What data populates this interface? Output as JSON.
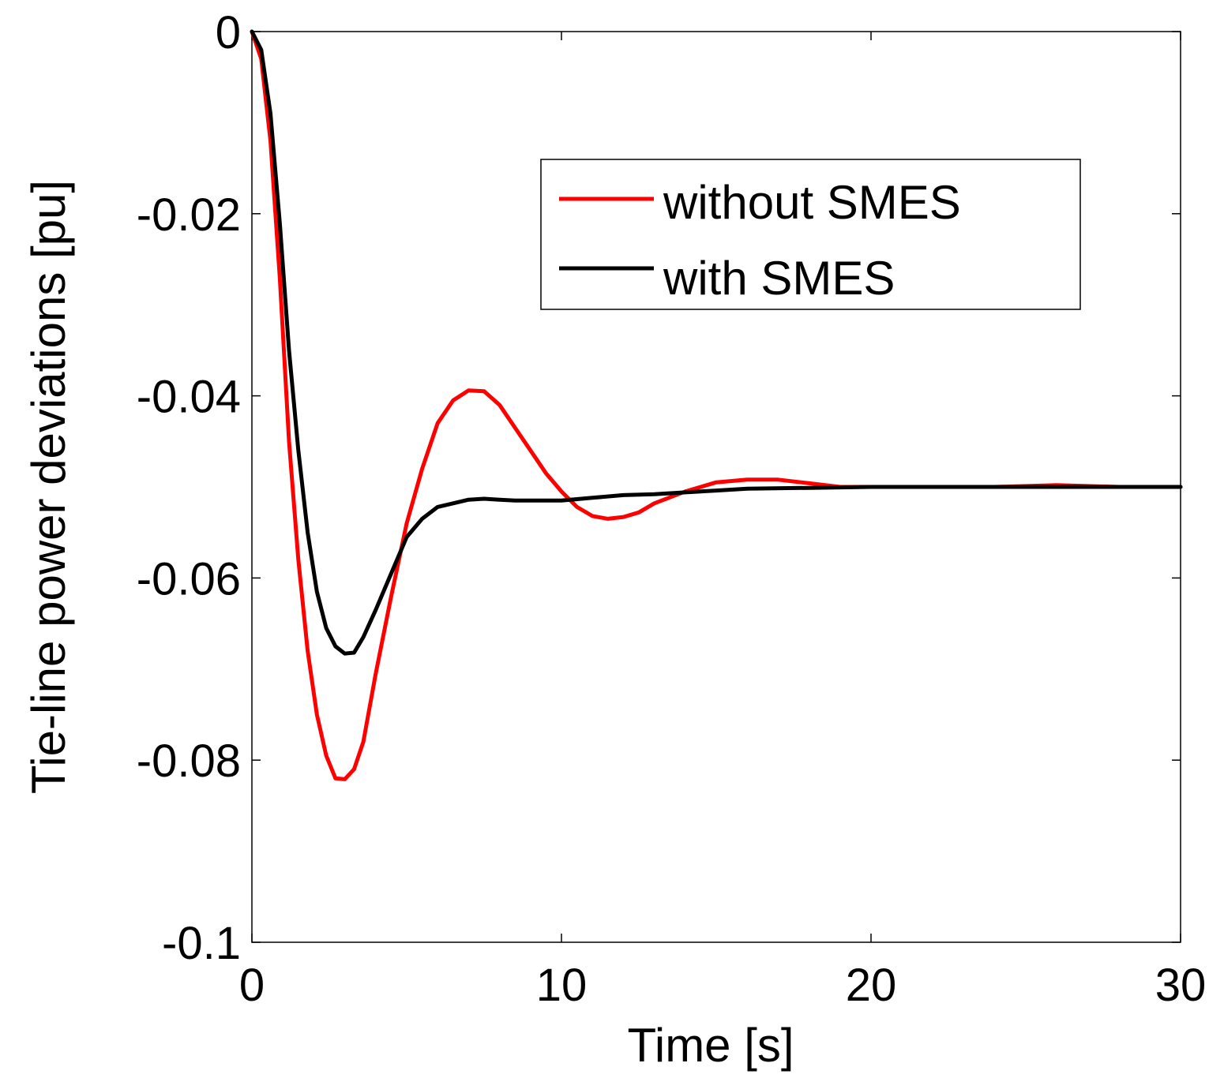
{
  "chart_data": {
    "type": "line",
    "title": "",
    "xlabel": "Time [s]",
    "ylabel": "Tie-line power deviations [pu]",
    "xlim": [
      0,
      30
    ],
    "ylim": [
      -0.1,
      0
    ],
    "xticks": [
      0,
      10,
      20,
      30
    ],
    "xtick_labels": [
      "0",
      "10",
      "20",
      "30"
    ],
    "yticks": [
      0,
      -0.02,
      -0.04,
      -0.06,
      -0.08,
      -0.1
    ],
    "ytick_labels": [
      "0",
      "-0.02",
      "-0.04",
      "-0.06",
      "-0.08",
      "-0.1"
    ],
    "grid": false,
    "legend_position": "upper-right",
    "series": [
      {
        "name": "without SMES",
        "color": "#ff0000",
        "x": [
          0,
          0.3,
          0.6,
          0.9,
          1.2,
          1.5,
          1.8,
          2.1,
          2.4,
          2.7,
          3.0,
          3.3,
          3.6,
          4.0,
          4.5,
          5.0,
          5.5,
          6.0,
          6.5,
          7.0,
          7.5,
          8.0,
          8.5,
          9.0,
          9.5,
          10.0,
          10.5,
          11.0,
          11.5,
          12.0,
          12.5,
          13.0,
          14.0,
          15.0,
          16.0,
          17.0,
          18.0,
          19.0,
          20.0,
          22.0,
          24.0,
          26.0,
          28.0,
          30.0
        ],
        "y": [
          0,
          -0.003,
          -0.012,
          -0.027,
          -0.045,
          -0.058,
          -0.068,
          -0.075,
          -0.0795,
          -0.082,
          -0.0821,
          -0.081,
          -0.078,
          -0.0705,
          -0.062,
          -0.054,
          -0.048,
          -0.043,
          -0.0405,
          -0.0394,
          -0.0395,
          -0.041,
          -0.0435,
          -0.046,
          -0.0485,
          -0.0505,
          -0.0522,
          -0.0532,
          -0.0535,
          -0.0533,
          -0.0528,
          -0.0518,
          -0.0505,
          -0.0495,
          -0.0492,
          -0.0492,
          -0.0496,
          -0.05,
          -0.05,
          -0.05,
          -0.05,
          -0.0498,
          -0.05,
          -0.05
        ]
      },
      {
        "name": "with SMES",
        "color": "#000000",
        "x": [
          0,
          0.3,
          0.6,
          0.9,
          1.2,
          1.5,
          1.8,
          2.1,
          2.4,
          2.7,
          3.0,
          3.3,
          3.6,
          4.0,
          4.5,
          5.0,
          5.5,
          6.0,
          6.5,
          7.0,
          7.5,
          8.0,
          8.5,
          9.0,
          10.0,
          11.0,
          12.0,
          13.0,
          14.0,
          15.0,
          16.0,
          18.0,
          20.0,
          22.0,
          25.0,
          30.0
        ],
        "y": [
          0,
          -0.002,
          -0.009,
          -0.021,
          -0.035,
          -0.046,
          -0.055,
          -0.0615,
          -0.0655,
          -0.0675,
          -0.0683,
          -0.0682,
          -0.0665,
          -0.0635,
          -0.0595,
          -0.0555,
          -0.0535,
          -0.0522,
          -0.0518,
          -0.0514,
          -0.0513,
          -0.0514,
          -0.0515,
          -0.0515,
          -0.0515,
          -0.0512,
          -0.0509,
          -0.0508,
          -0.0506,
          -0.0504,
          -0.0502,
          -0.0501,
          -0.05,
          -0.05,
          -0.05,
          -0.05
        ]
      }
    ]
  }
}
